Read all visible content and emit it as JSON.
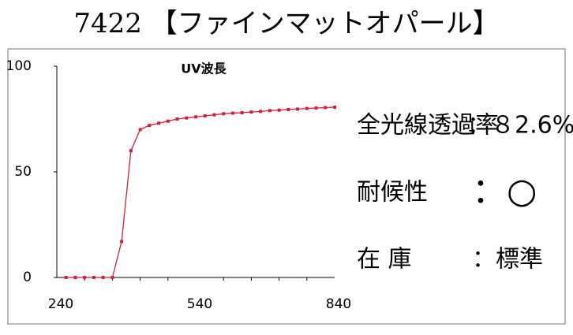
{
  "header": {
    "title": "7422 【ファインマットオパール】"
  },
  "chart_data": {
    "type": "line",
    "title": "UV波長",
    "x": [
      260,
      280,
      300,
      320,
      340,
      360,
      380,
      400,
      420,
      440,
      460,
      480,
      500,
      520,
      540,
      560,
      580,
      600,
      620,
      640,
      660,
      680,
      700,
      720,
      740,
      760,
      780,
      800,
      820,
      840
    ],
    "series": [
      {
        "color": "#d0203a",
        "values": [
          0,
          0,
          0,
          0,
          0,
          0,
          17,
          60,
          70,
          72,
          73,
          74,
          75,
          75.5,
          76,
          76.5,
          77,
          77.5,
          77.8,
          78,
          78.3,
          78.6,
          79,
          79.2,
          79.5,
          79.7,
          80,
          80.2,
          80.4,
          80.6
        ]
      }
    ],
    "xlim": [
      240,
      840
    ],
    "xticks": [
      240,
      540,
      840
    ],
    "ylim": [
      0,
      100
    ],
    "yticks": [
      0,
      50,
      100
    ]
  },
  "specs": [
    {
      "label": "全光線透過率",
      "value": "：８2.6%"
    },
    {
      "label": "耐候性",
      "value": "：○"
    },
    {
      "label": "在 庫",
      "value": "：標準"
    }
  ]
}
